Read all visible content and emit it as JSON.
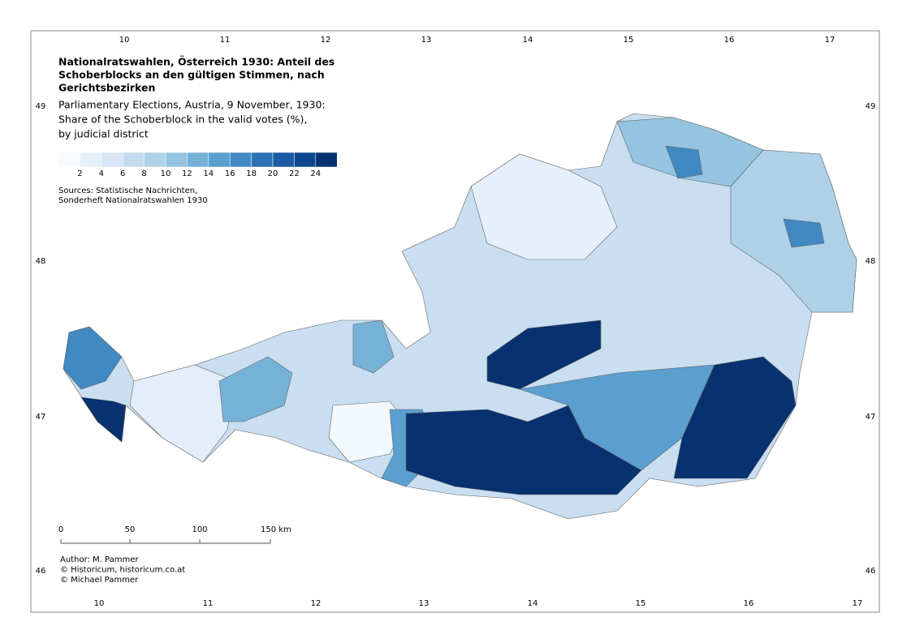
{
  "title_lines": [
    "Nationalratswahlen, Österreich 1930: Anteil des",
    "Schoberblocks an den gültigen Stimmen, nach",
    "Gerichtsbezirken"
  ],
  "subtitle_lines": [
    "Parliamentary Elections, Austria, 9 November, 1930:",
    "Share of the Schoberblock in the valid votes (%),",
    "by judicial district"
  ],
  "legend": {
    "colors": [
      "#f7fbff",
      "#e6f0fa",
      "#d6e6f4",
      "#c4dbef",
      "#aed1e7",
      "#94c4df",
      "#76b1d8",
      "#5a9fcf",
      "#4089c3",
      "#2c72b4",
      "#1a5ba3",
      "#0d468f",
      "#083170"
    ],
    "labels": [
      "2",
      "4",
      "6",
      "8",
      "10",
      "12",
      "14",
      "16",
      "18",
      "20",
      "22",
      "24"
    ]
  },
  "sources_lines": [
    "Sources: Statistische Nachrichten,",
    "Sonderheft Nationalratswahlen 1930"
  ],
  "scale_labels": [
    "0",
    "50",
    "100",
    "150 km"
  ],
  "author_lines": [
    "Author: M. Pammer",
    "© Historicum, historicum.co.at",
    "© Michael Pammer"
  ],
  "graticule": {
    "top": [
      "10",
      "11",
      "12",
      "13",
      "14",
      "15",
      "16",
      "17"
    ],
    "bottom": [
      "10",
      "11",
      "12",
      "13",
      "14",
      "15",
      "16",
      "17"
    ],
    "left": [
      "49",
      "48",
      "47",
      "46"
    ],
    "right": [
      "49",
      "48",
      "47",
      "46"
    ]
  }
}
